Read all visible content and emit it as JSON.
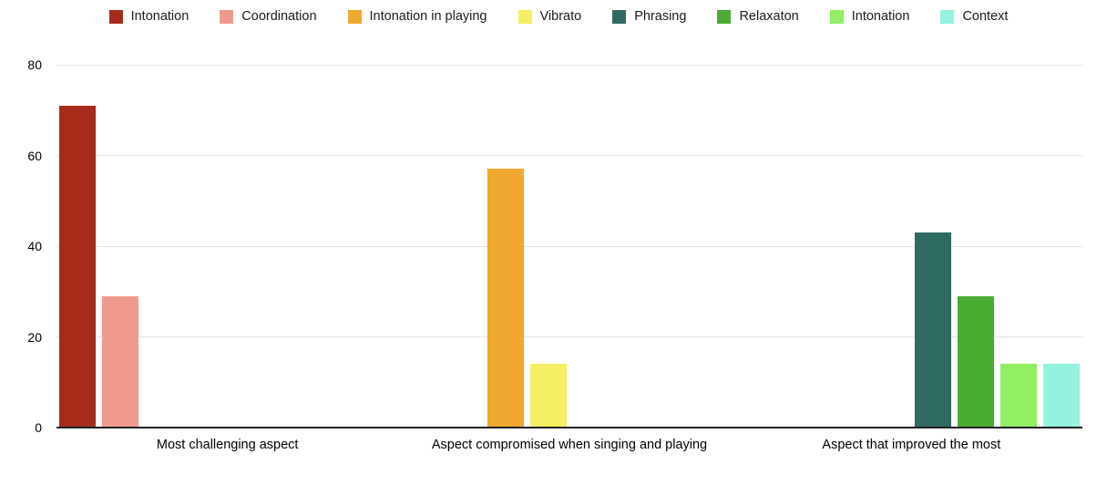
{
  "chart_data": {
    "type": "bar",
    "title": "",
    "xlabel": "",
    "ylabel": "",
    "categories": [
      "Most challenging aspect",
      "Aspect compromised when singing and playing",
      "Aspect that improved the most"
    ],
    "series": [
      {
        "name": "Intonation",
        "color": "#a62b1a",
        "values": [
          71,
          null,
          null
        ]
      },
      {
        "name": "Coordination",
        "color": "#f09a8c",
        "values": [
          29,
          null,
          null
        ]
      },
      {
        "name": "Intonation in playing",
        "color": "#f0a82f",
        "values": [
          null,
          57,
          null
        ]
      },
      {
        "name": "Vibrato",
        "color": "#f6ef62",
        "values": [
          null,
          14,
          null
        ]
      },
      {
        "name": "Phrasing",
        "color": "#2f6b62",
        "values": [
          null,
          null,
          43
        ]
      },
      {
        "name": "Relaxaton",
        "color": "#4bac33",
        "values": [
          null,
          null,
          29
        ]
      },
      {
        "name": "Intonation",
        "color": "#90ee63",
        "values": [
          null,
          null,
          14
        ]
      },
      {
        "name": "Context",
        "color": "#93f2e0",
        "values": [
          null,
          null,
          14
        ]
      }
    ],
    "yticks": [
      0,
      20,
      40,
      60,
      80
    ],
    "ylim": [
      0,
      80
    ],
    "grid": true,
    "legend_position": "top",
    "axis_color": "#212121",
    "gridline_color": "#e3e3e3",
    "background_color": "#ffffff"
  }
}
